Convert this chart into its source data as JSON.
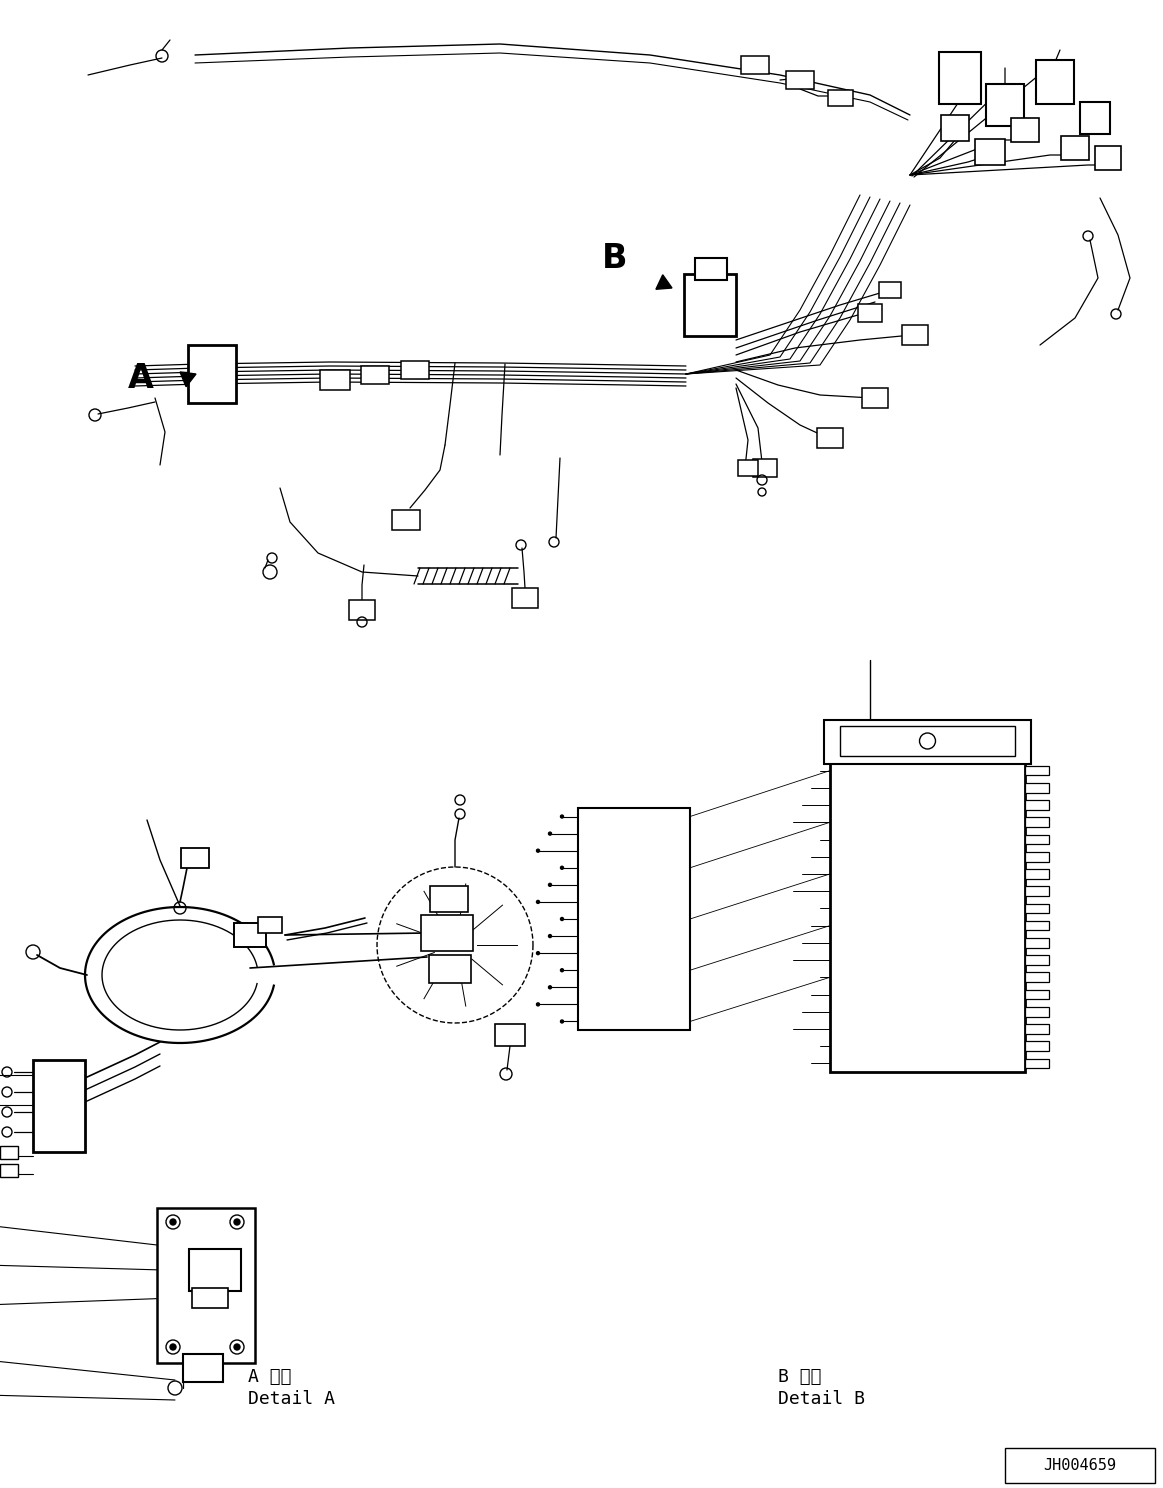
{
  "background_color": "#ffffff",
  "line_color": "#000000",
  "label_A": "A",
  "label_B": "B",
  "detail_a_jp": "A 詳細",
  "detail_a_en": "Detail A",
  "detail_b_jp": "B 詳細",
  "detail_b_en": "Detail B",
  "ref_number": "JH004659",
  "fig_width": 11.63,
  "fig_height": 14.88,
  "dpi": 100
}
